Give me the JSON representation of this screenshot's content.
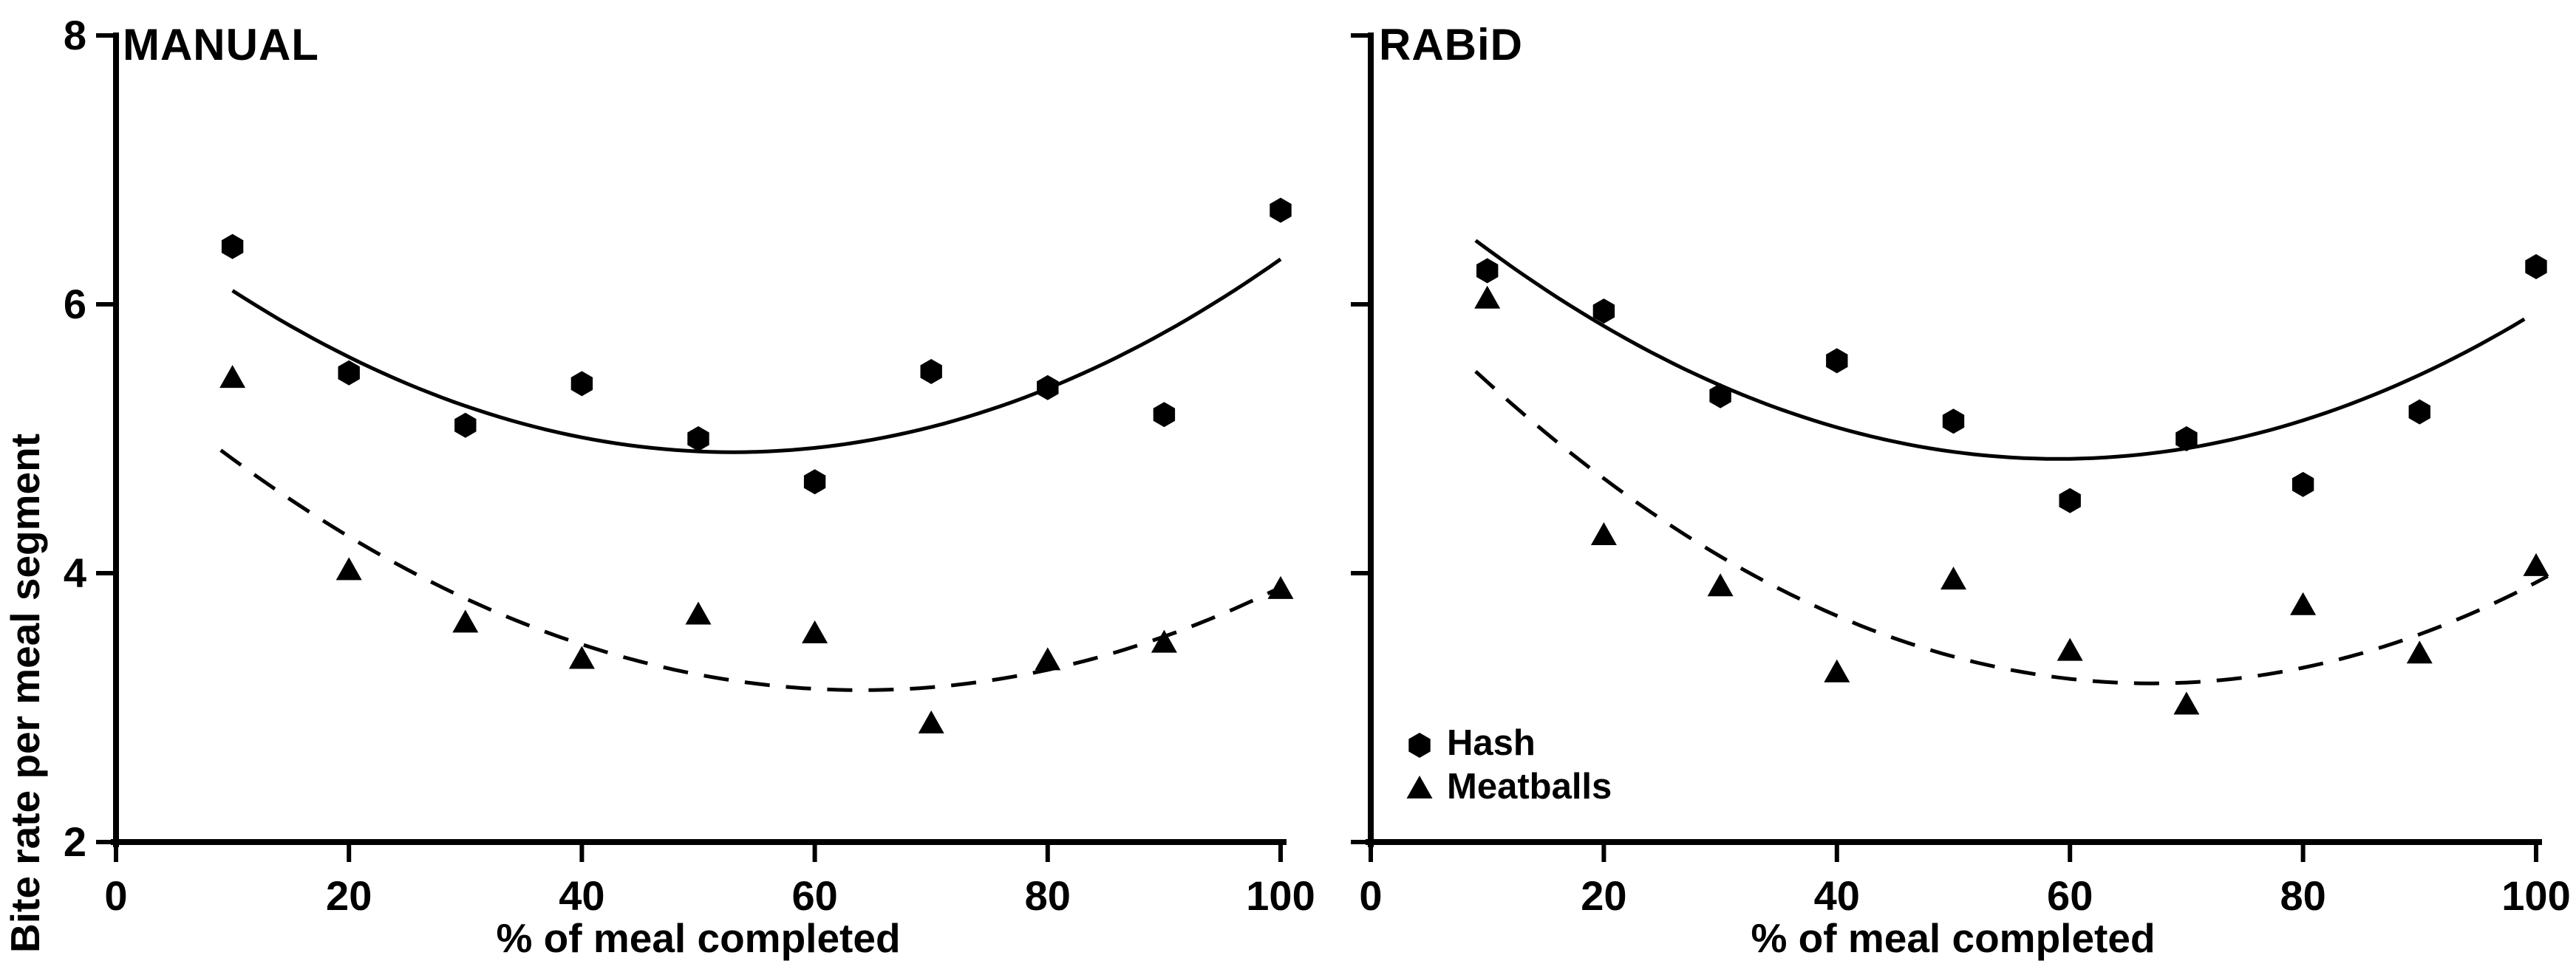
{
  "figure": {
    "background_color": "#ffffff",
    "ink_color": "#000000"
  },
  "y_axis": {
    "label": "Bite rate per meal segment",
    "ticks": [
      8,
      6,
      4,
      2
    ],
    "range": [
      2,
      8
    ]
  },
  "x_axis": {
    "label": "% of meal completed",
    "ticks": [
      0,
      20,
      40,
      60,
      80,
      100
    ],
    "range": [
      0,
      100
    ]
  },
  "legend": {
    "items": [
      {
        "label": "Hash",
        "marker": "hexagon"
      },
      {
        "label": "Meatballs",
        "marker": "triangle"
      }
    ]
  },
  "chart_data": [
    {
      "panel": "MANUAL",
      "type": "scatter",
      "x": [
        10,
        20,
        30,
        40,
        50,
        60,
        70,
        80,
        90,
        100
      ],
      "series": [
        {
          "name": "Hash",
          "marker": "hexagon",
          "line_style": "solid",
          "values": [
            6.43,
            5.49,
            5.1,
            5.41,
            5.0,
            4.68,
            5.5,
            5.38,
            5.18,
            6.7
          ],
          "trend": {
            "type": "quadratic",
            "vertex_x": 53,
            "min_value": 4.9,
            "curvature": 0.00065,
            "from": 10,
            "to": 100
          }
        },
        {
          "name": "Meatballs",
          "marker": "triangle",
          "line_style": "dashed",
          "values": [
            5.45,
            4.02,
            3.63,
            3.36,
            3.69,
            3.55,
            2.88,
            3.35,
            3.48,
            3.88
          ],
          "trend": {
            "type": "quadratic",
            "vertex_x": 64,
            "min_value": 3.13,
            "curvature": 0.00059,
            "from": 9,
            "to": 100
          }
        }
      ],
      "show_y_tick_labels": true,
      "show_legend": false
    },
    {
      "panel": "RABiD",
      "type": "scatter",
      "x": [
        10,
        20,
        30,
        40,
        50,
        60,
        70,
        80,
        90,
        100
      ],
      "series": [
        {
          "name": "Hash",
          "marker": "hexagon",
          "line_style": "solid",
          "values": [
            6.25,
            5.95,
            5.32,
            5.58,
            5.13,
            4.54,
            5.0,
            4.66,
            5.2,
            6.28
          ],
          "trend": {
            "type": "quadratic",
            "vertex_x": 59,
            "min_value": 4.85,
            "curvature": 0.00065,
            "from": 9,
            "to": 99
          }
        },
        {
          "name": "Meatballs",
          "marker": "triangle",
          "line_style": "dashed",
          "values": [
            6.04,
            4.28,
            3.9,
            3.26,
            3.95,
            3.42,
            3.02,
            3.76,
            3.4,
            4.05
          ],
          "trend": {
            "type": "quadratic",
            "vertex_x": 67,
            "min_value": 3.18,
            "curvature": 0.00069,
            "from": 9,
            "to": 101
          }
        }
      ],
      "show_y_tick_labels": false,
      "show_legend": true
    }
  ]
}
